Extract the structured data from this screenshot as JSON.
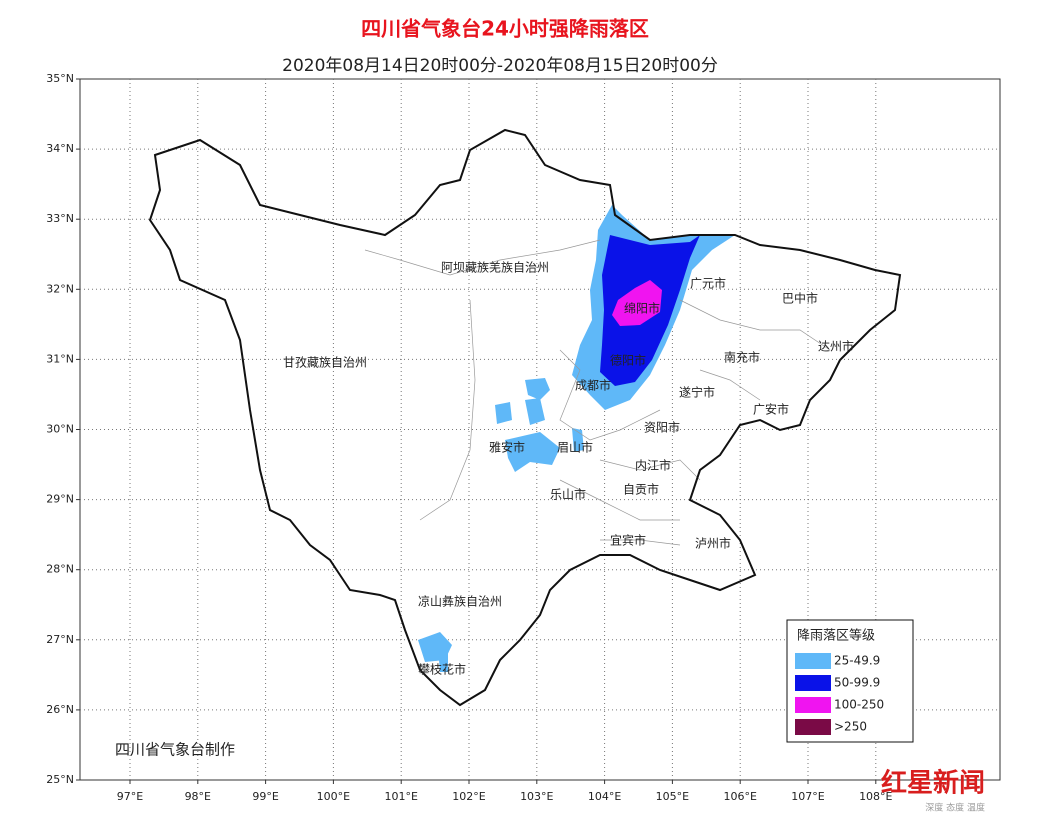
{
  "title": "四川省气象台24小时强降雨落区",
  "subtitle": "2020年08月14日20时00分-2020年08月15日20时00分",
  "lat_ticks": [
    {
      "value": 25,
      "label": "25°N"
    },
    {
      "value": 26,
      "label": "26°N"
    },
    {
      "value": 27,
      "label": "27°N"
    },
    {
      "value": 28,
      "label": "28°N"
    },
    {
      "value": 29,
      "label": "29°N"
    },
    {
      "value": 30,
      "label": "30°N"
    },
    {
      "value": 31,
      "label": "31°N"
    },
    {
      "value": 32,
      "label": "32°N"
    },
    {
      "value": 33,
      "label": "33°N"
    },
    {
      "value": 34,
      "label": "34°N"
    },
    {
      "value": 35,
      "label": "35°N"
    }
  ],
  "lon_ticks": [
    {
      "value": 97,
      "label": "97°E"
    },
    {
      "value": 98,
      "label": "98°E"
    },
    {
      "value": 99,
      "label": "99°E"
    },
    {
      "value": 100,
      "label": "100°E"
    },
    {
      "value": 101,
      "label": "101°E"
    },
    {
      "value": 102,
      "label": "102°E"
    },
    {
      "value": 103,
      "label": "103°E"
    },
    {
      "value": 104,
      "label": "104°E"
    },
    {
      "value": 105,
      "label": "105°E"
    },
    {
      "value": 106,
      "label": "106°E"
    },
    {
      "value": 107,
      "label": "107°E"
    },
    {
      "value": 108,
      "label": "108°E"
    }
  ],
  "cities": [
    "阿坝藏族羌族自治州",
    "甘孜藏族自治州",
    "广元市",
    "巴中市",
    "绵阳市",
    "达州市",
    "德阳市",
    "南充市",
    "成都市",
    "遂宁市",
    "广安市",
    "雅安市",
    "眉山市",
    "资阳市",
    "内江市",
    "乐山市",
    "自贡市",
    "宜宾市",
    "泸州市",
    "凉山彝族自治州",
    "攀枝花市"
  ],
  "legend": {
    "title": "降雨落区等级",
    "items": [
      {
        "label": "25-49.9",
        "color": "#5fb8f8"
      },
      {
        "label": "50-99.9",
        "color": "#0a12e8"
      },
      {
        "label": "100-250",
        "color": "#f014f0"
      },
      {
        "label": ">250",
        "color": "#7a0a46"
      }
    ]
  },
  "credit": "四川省气象台制作",
  "watermark": {
    "brand": "红星新闻",
    "slogan": "深度 态度 温度"
  }
}
